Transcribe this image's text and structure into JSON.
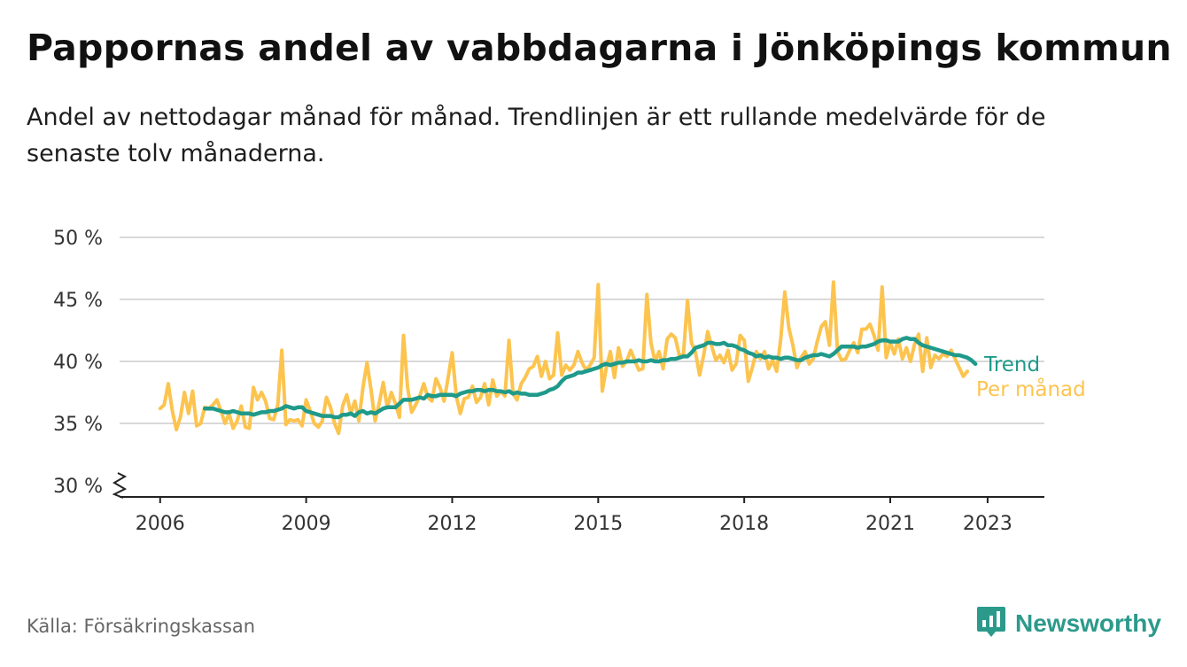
{
  "title": "Pappornas andel av vabbdagarna i Jönköpings kommun",
  "subtitle": "Andel av nettodagar månad för månad. Trendlinjen är ett rullande medelvärde för de senaste tolv månaderna.",
  "source": "Källa: Försäkringskassan",
  "brand": {
    "name": "Newsworthy",
    "icon": "newsworthy-chart-bubble-icon",
    "color": "#2b9a8b"
  },
  "colors": {
    "monthly": "#fcc44f",
    "trend": "#1f9a8a",
    "grid": "#d9d9d9",
    "axis": "#222222"
  },
  "chart_data": {
    "type": "line",
    "y_unit": "%",
    "ylim": [
      30,
      50
    ],
    "yticks": [
      30,
      35,
      40,
      45,
      50
    ],
    "ytick_labels": [
      "30 %",
      "35 %",
      "40 %",
      "45 %",
      "50 %"
    ],
    "y_axis_break": true,
    "xlim": [
      "2005-03",
      "2024-03"
    ],
    "xticks": [
      "2006-01",
      "2009-01",
      "2012-01",
      "2015-01",
      "2018-01",
      "2021-01",
      "2023-01"
    ],
    "xtick_labels": [
      "2006",
      "2009",
      "2012",
      "2015",
      "2018",
      "2021",
      "2023"
    ],
    "grid": "horizontal",
    "legend": "inline-right",
    "series": [
      {
        "name": "Trend",
        "start": "2006-12",
        "values": [
          36.2,
          36.2,
          36.2,
          36.1,
          36.0,
          35.9,
          35.9,
          36.0,
          35.9,
          35.8,
          35.8,
          35.8,
          35.7,
          35.8,
          35.9,
          35.9,
          36.0,
          36.0,
          36.1,
          36.2,
          36.4,
          36.3,
          36.2,
          36.3,
          36.3,
          36.0,
          35.9,
          35.8,
          35.7,
          35.6,
          35.6,
          35.6,
          35.5,
          35.5,
          35.7,
          35.7,
          35.8,
          35.6,
          35.9,
          36.0,
          35.8,
          35.9,
          35.8,
          36.0,
          36.2,
          36.3,
          36.3,
          36.3,
          36.6,
          36.9,
          36.9,
          36.9,
          37.0,
          37.1,
          37.0,
          37.3,
          37.2,
          37.2,
          37.3,
          37.3,
          37.3,
          37.3,
          37.2,
          37.4,
          37.5,
          37.6,
          37.6,
          37.7,
          37.7,
          37.6,
          37.7,
          37.7,
          37.6,
          37.6,
          37.5,
          37.6,
          37.4,
          37.5,
          37.4,
          37.4,
          37.3,
          37.3,
          37.3,
          37.4,
          37.5,
          37.7,
          37.8,
          38.0,
          38.4,
          38.7,
          38.8,
          38.9,
          39.1,
          39.1,
          39.2,
          39.3,
          39.4,
          39.5,
          39.7,
          39.8,
          39.7,
          39.8,
          39.9,
          39.9,
          40.0,
          40.0,
          40.0,
          40.1,
          40.0,
          40.0,
          40.1,
          40.0,
          40.0,
          40.1,
          40.1,
          40.2,
          40.2,
          40.3,
          40.4,
          40.4,
          40.7,
          41.1,
          41.2,
          41.3,
          41.5,
          41.5,
          41.4,
          41.4,
          41.5,
          41.3,
          41.3,
          41.2,
          41.0,
          40.9,
          40.7,
          40.6,
          40.4,
          40.5,
          40.3,
          40.4,
          40.3,
          40.3,
          40.2,
          40.3,
          40.3,
          40.2,
          40.1,
          40.1,
          40.3,
          40.4,
          40.5,
          40.5,
          40.6,
          40.5,
          40.4,
          40.6,
          40.9,
          41.2,
          41.2,
          41.2,
          41.2,
          41.1,
          41.2,
          41.2,
          41.3,
          41.4,
          41.6,
          41.7,
          41.7,
          41.6,
          41.6,
          41.6,
          41.8,
          41.9,
          41.8,
          41.8,
          41.5,
          41.3,
          41.2,
          41.1,
          41.0,
          40.9,
          40.8,
          40.7,
          40.6,
          40.5,
          40.5,
          40.4,
          40.3,
          40.1,
          39.8
        ]
      },
      {
        "name": "Per månad",
        "start": "2006-01",
        "values": [
          36.2,
          36.5,
          38.2,
          36.0,
          34.5,
          35.5,
          37.5,
          35.8,
          37.6,
          34.8,
          35.0,
          36.3,
          36.2,
          36.5,
          36.9,
          36.0,
          35.0,
          35.8,
          34.6,
          35.2,
          36.4,
          34.7,
          34.6,
          37.9,
          36.9,
          37.5,
          36.8,
          35.4,
          35.3,
          36.5,
          40.9,
          34.9,
          35.3,
          35.2,
          35.3,
          34.8,
          36.9,
          36.0,
          35.0,
          34.7,
          35.2,
          37.1,
          36.3,
          35.0,
          34.2,
          36.4,
          37.3,
          35.8,
          36.8,
          35.2,
          37.9,
          39.9,
          37.7,
          35.2,
          36.6,
          38.3,
          36.3,
          37.5,
          36.6,
          35.5,
          42.1,
          37.9,
          35.9,
          36.5,
          37.2,
          38.2,
          37.1,
          36.8,
          38.6,
          37.9,
          36.8,
          38.7,
          40.7,
          37.2,
          35.8,
          37.0,
          37.1,
          38.0,
          36.7,
          37.1,
          38.2,
          36.5,
          38.5,
          37.2,
          37.6,
          37.2,
          41.7,
          37.4,
          36.9,
          38.2,
          38.7,
          39.4,
          39.6,
          40.4,
          38.8,
          40.0,
          38.6,
          38.9,
          42.3,
          38.9,
          39.7,
          39.3,
          39.7,
          40.8,
          39.9,
          39.3,
          39.7,
          40.3,
          46.2,
          37.6,
          39.5,
          40.8,
          38.7,
          41.1,
          39.6,
          40.0,
          40.9,
          40.1,
          39.3,
          39.4,
          45.4,
          41.5,
          40.0,
          40.8,
          39.4,
          41.8,
          42.2,
          41.9,
          40.5,
          40.5,
          44.9,
          41.5,
          40.7,
          38.9,
          40.5,
          42.4,
          41.2,
          40.1,
          40.5,
          39.9,
          40.9,
          39.3,
          39.8,
          42.1,
          41.7,
          38.4,
          39.5,
          40.8,
          40.2,
          40.8,
          39.4,
          40.1,
          39.2,
          41.8,
          45.6,
          42.7,
          41.3,
          39.5,
          40.3,
          40.8,
          39.8,
          40.2,
          41.6,
          42.8,
          43.2,
          41.3,
          46.4,
          40.8,
          40.1,
          40.2,
          40.9,
          41.5,
          40.7,
          42.6,
          42.6,
          43.0,
          42.1,
          40.9,
          46.0,
          40.3,
          41.5,
          40.6,
          41.8,
          40.2,
          41.1,
          40.0,
          41.4,
          42.2,
          39.2,
          41.9,
          39.5,
          40.5,
          40.2,
          40.6,
          40.4,
          40.9,
          40.2,
          39.5,
          38.8,
          39.2
        ]
      }
    ]
  }
}
